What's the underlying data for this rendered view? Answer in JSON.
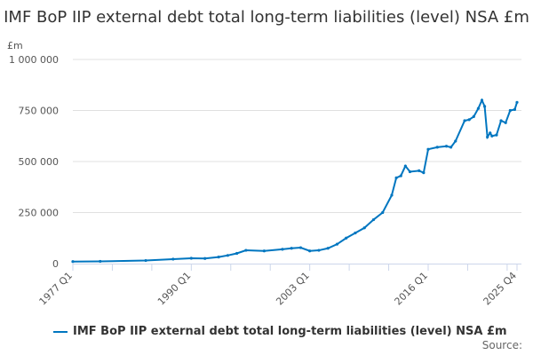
{
  "chart_data": {
    "type": "line",
    "title": "IMF BoP IIP external debt total long-term liabilities (level) NSA £m",
    "ylabel": "£m",
    "xlabel": "",
    "ylim": [
      0,
      1000000
    ],
    "yticks": [
      0,
      250000,
      500000,
      750000,
      1000000
    ],
    "ytick_labels": [
      "0",
      "250 000",
      "500 000",
      "750 000",
      "1 000 000"
    ],
    "xlim": [
      1977.0,
      2025.75
    ],
    "xticks": [
      1977.0,
      1990.0,
      2003.0,
      2016.0,
      2025.75
    ],
    "xtick_labels": [
      "1977 Q1",
      "1990 Q1",
      "2003 Q1",
      "2016 Q1",
      "2025 Q4"
    ],
    "grid": true,
    "legend_position": "bottom",
    "series": [
      {
        "name": "IMF BoP IIP external debt total long-term liabilities (level) NSA £m",
        "color": "#0076c0",
        "x": [
          1977,
          1980,
          1985,
          1988,
          1990,
          1991.5,
          1993,
          1994,
          1995,
          1996,
          1998,
          2000,
          2001,
          2002,
          2003,
          2004,
          2005,
          2006,
          2007,
          2008,
          2009,
          2010,
          2011,
          2012,
          2012.5,
          2013,
          2013.5,
          2014,
          2015,
          2015.5,
          2016,
          2017,
          2018,
          2018.5,
          2019,
          2020,
          2020.5,
          2021,
          2021.5,
          2021.9,
          2022.2,
          2022.5,
          2022.8,
          2023,
          2023.5,
          2024,
          2024.5,
          2025,
          2025.5,
          2025.75
        ],
        "values": [
          10000,
          11000,
          15000,
          22000,
          26000,
          25000,
          32000,
          40000,
          50000,
          65000,
          62000,
          70000,
          75000,
          78000,
          62000,
          65000,
          75000,
          95000,
          125000,
          150000,
          175000,
          215000,
          250000,
          335000,
          420000,
          430000,
          478000,
          450000,
          455000,
          445000,
          560000,
          570000,
          575000,
          570000,
          600000,
          700000,
          705000,
          720000,
          760000,
          800000,
          770000,
          620000,
          640000,
          625000,
          630000,
          700000,
          690000,
          750000,
          755000,
          790000
        ]
      }
    ]
  },
  "source_label": "Source:"
}
